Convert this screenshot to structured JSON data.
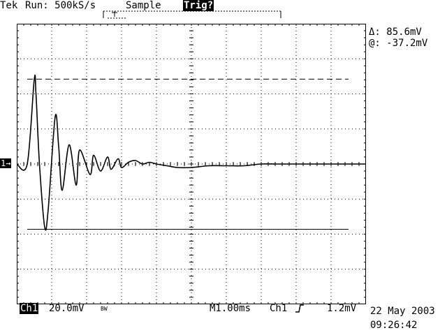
{
  "header": {
    "brand": "Tek",
    "status": "Run: 500kS/s",
    "mode": "Sample",
    "trigger_status": "Trig?"
  },
  "cursor_readout": {
    "delta": "Δ: 85.6mV",
    "at": "@: -37.2mV"
  },
  "channel_marker": "1→",
  "footer": {
    "channel": "Ch1",
    "volts_per_div": "20.0mV",
    "bw_marker": "BW",
    "timebase": "M1.00ms",
    "trigger_source": "Ch1",
    "trigger_slope_icon": "rising-edge-icon",
    "trigger_level": "1.2mV",
    "date": "22 May 2003",
    "time": "09:26:42"
  },
  "chart_data": {
    "type": "line",
    "xlabel": "",
    "ylabel": "",
    "x_unit": "ms",
    "y_unit": "mV",
    "xlim": [
      0,
      10
    ],
    "ylim": [
      -80,
      80
    ],
    "grid": true,
    "series": [
      {
        "x": [
          0,
          0.3,
          0.5,
          0.55,
          0.65,
          0.8,
          0.9,
          1.1,
          1.2,
          1.3,
          1.5,
          1.7,
          1.8,
          2.1,
          2.2,
          2.4,
          2.6,
          2.7,
          2.9,
          3.0,
          3.2,
          3.4,
          3.6,
          3.8,
          4.0,
          4.3,
          4.6,
          5.0,
          5.5,
          6.0,
          6.5,
          7.0,
          7.5,
          8.0,
          9.0,
          10.0
        ],
        "y": [
          0,
          0,
          48,
          40,
          0,
          -36,
          -26,
          27,
          10,
          -15,
          11,
          -12,
          8,
          -6,
          5,
          -4,
          4,
          -3,
          3,
          -2,
          1,
          2,
          0,
          1,
          0,
          -1,
          -2,
          -2,
          -1,
          -1,
          -1,
          0,
          0,
          0,
          0,
          0
        ]
      }
    ],
    "cursors": [
      {
        "style": "dashed",
        "y": 48.4
      },
      {
        "style": "solid",
        "y": -37.2
      }
    ]
  }
}
